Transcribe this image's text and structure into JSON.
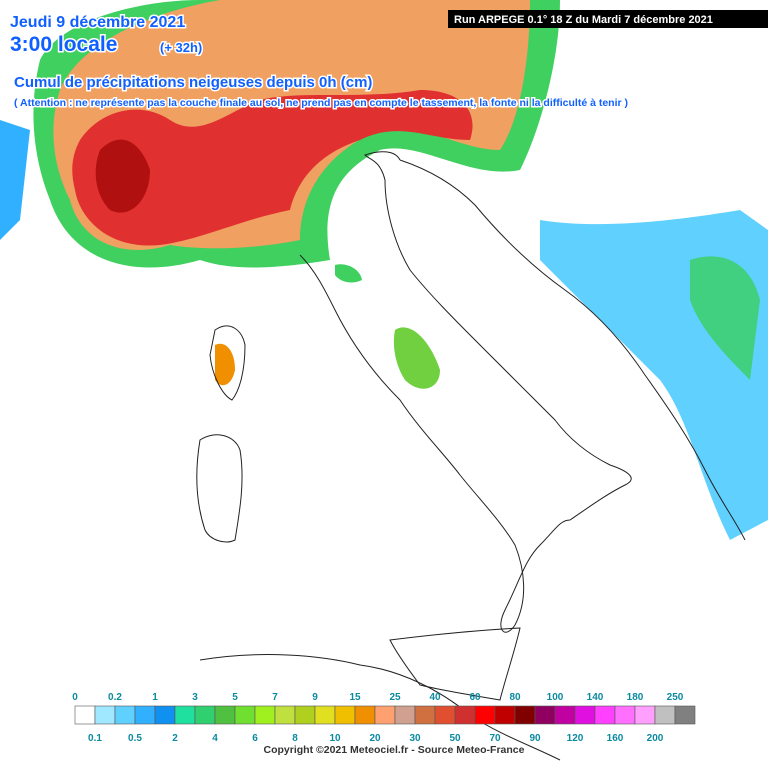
{
  "header": {
    "date": "Jeudi 9 décembre 2021",
    "time": "3:00 locale",
    "lead": "(+ 32h)",
    "title": "Cumul de précipitations neigeuses depuis 0h (cm)",
    "note": "( Attention : ne représente pas la couche finale au sol, ne prend pas en compte le tassement, la fonte ni la difficulté à tenir )",
    "run": "Run ARPEGE 0.1° 18 Z du Mardi 7 décembre 2021"
  },
  "legend": {
    "values": [
      0,
      0.1,
      0.2,
      0.5,
      1,
      2,
      3,
      4,
      5,
      6,
      7,
      8,
      9,
      10,
      15,
      20,
      25,
      30,
      40,
      50,
      60,
      70,
      80,
      90,
      100,
      120,
      140,
      160,
      180,
      200,
      250
    ],
    "colors": [
      "#ffffff",
      "#a0e8ff",
      "#60d0ff",
      "#30b0ff",
      "#1090f0",
      "#20e0a0",
      "#30d070",
      "#50c040",
      "#70e030",
      "#a0f020",
      "#c0e040",
      "#b0d020",
      "#e0e020",
      "#f0c000",
      "#f09000",
      "#ffa070",
      "#d0a090",
      "#d07040",
      "#e05030",
      "#d03030",
      "#ff0000",
      "#c00000",
      "#800000",
      "#900060",
      "#c000a0",
      "#e010e0",
      "#ff40ff",
      "#ff70ff",
      "#ffa0ff",
      "#c0c0c0",
      "#808080"
    ]
  },
  "footer": {
    "copyright": "Copyright ©2021 Meteociel.fr - Source Meteo-France"
  }
}
